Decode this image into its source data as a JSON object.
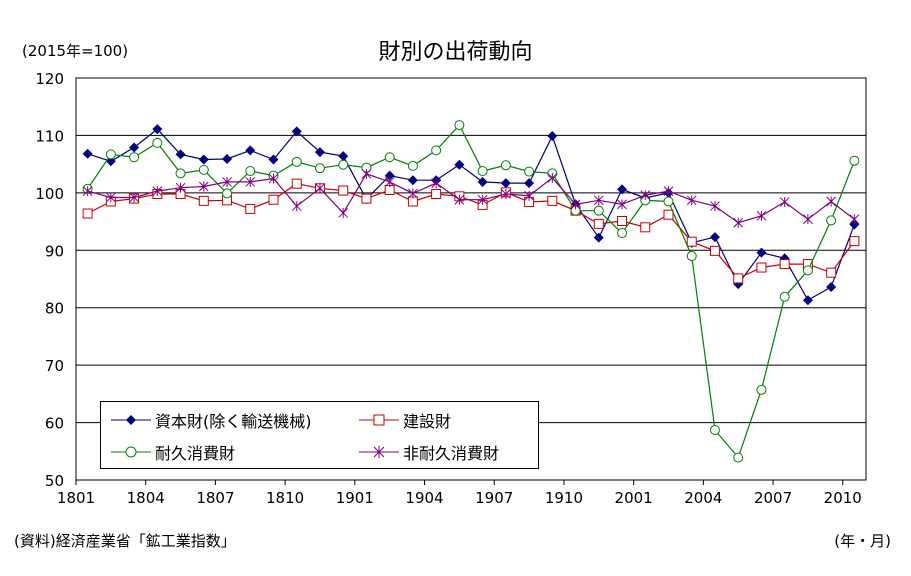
{
  "chart_data": {
    "type": "line",
    "title": "財別の出荷動向",
    "ylabel": "(2015年=100)",
    "xlabel": "(年・月)",
    "source": "(資料)経済産業省「鉱工業指数」",
    "ylim": [
      50,
      120
    ],
    "yticks": [
      50,
      60,
      70,
      80,
      90,
      100,
      110,
      120
    ],
    "grid": true,
    "legend_position": "bottom-left",
    "x": [
      "1801",
      "1802",
      "1803",
      "1804",
      "1805",
      "1806",
      "1807",
      "1808",
      "1809",
      "1810",
      "1811",
      "1812",
      "1901",
      "1902",
      "1903",
      "1904",
      "1905",
      "1906",
      "1907",
      "1908",
      "1909",
      "1910",
      "1911",
      "1912",
      "2001",
      "2002",
      "2003",
      "2004",
      "2005",
      "2006",
      "2007",
      "2008",
      "2009",
      "2010"
    ],
    "x_tick_labels": [
      "1801",
      "1804",
      "1807",
      "1810",
      "1901",
      "1904",
      "1907",
      "1910",
      "2001",
      "2004",
      "2007",
      "2010"
    ],
    "series": [
      {
        "name": "資本財(除く輸送機械)",
        "color": "#000080",
        "marker": "diamond",
        "values": [
          106.8,
          105.5,
          107.9,
          111.1,
          106.7,
          105.8,
          105.9,
          107.4,
          105.8,
          110.7,
          107.1,
          106.4,
          98.9,
          103.0,
          102.2,
          102.2,
          104.9,
          101.9,
          101.7,
          101.7,
          109.9,
          98.0,
          92.2,
          100.6,
          99.1,
          100.0,
          91.3,
          92.3,
          84.1,
          89.6,
          88.6,
          81.3,
          83.6,
          94.5
        ]
      },
      {
        "name": "建設財",
        "color": "#CC0000",
        "marker": "square",
        "values": [
          96.4,
          98.5,
          99.0,
          99.8,
          99.8,
          98.6,
          98.7,
          97.2,
          98.8,
          101.6,
          100.8,
          100.4,
          99.0,
          100.5,
          98.5,
          99.8,
          99.4,
          97.9,
          100.1,
          98.4,
          98.6,
          96.9,
          94.6,
          95.1,
          94.0,
          96.2,
          91.5,
          89.9,
          85.1,
          87.0,
          87.6,
          87.6,
          86.1,
          91.6
        ]
      },
      {
        "name": "耐久消費財",
        "color": "#008000",
        "marker": "circle",
        "values": [
          100.7,
          106.7,
          106.2,
          108.7,
          103.4,
          104.0,
          99.9,
          103.8,
          103.0,
          105.4,
          104.3,
          104.9,
          104.4,
          106.2,
          104.7,
          107.4,
          111.8,
          103.8,
          104.8,
          103.7,
          103.4,
          96.9,
          96.9,
          93.0,
          98.7,
          98.5,
          89.0,
          58.7,
          53.9,
          65.7,
          81.9,
          86.5,
          95.2,
          105.6
        ]
      },
      {
        "name": "非耐久消費財",
        "color": "#800080",
        "marker": "x",
        "values": [
          100.3,
          99.2,
          99.2,
          100.3,
          100.9,
          101.1,
          101.9,
          101.9,
          102.5,
          97.7,
          100.8,
          96.5,
          103.3,
          101.9,
          99.9,
          101.7,
          98.8,
          98.8,
          99.8,
          99.5,
          102.6,
          98.0,
          98.7,
          98.0,
          99.6,
          100.3,
          98.7,
          97.7,
          94.8,
          96.0,
          98.4,
          95.4,
          98.5,
          95.4
        ]
      }
    ]
  }
}
